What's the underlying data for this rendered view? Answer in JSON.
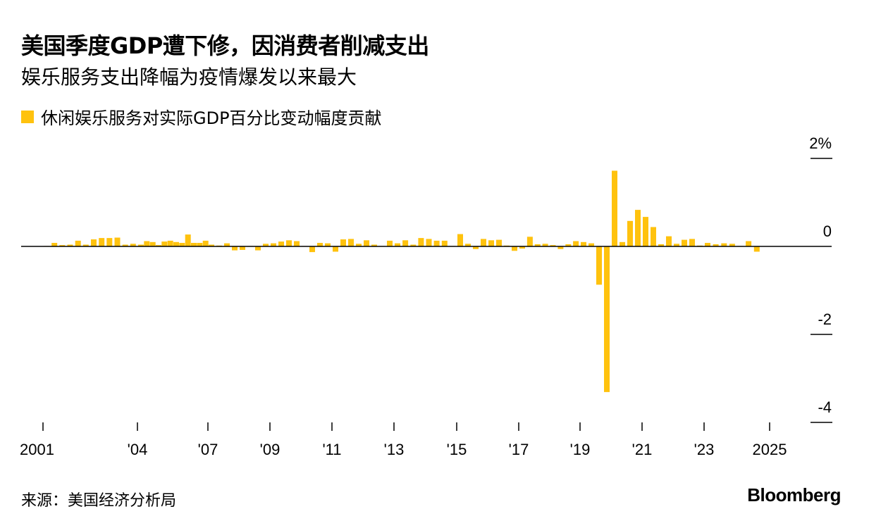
{
  "title": "美国季度GDP遭下修，因消费者削减支出",
  "subtitle": "娱乐服务支出降幅为疫情爆发以来最大",
  "legend": {
    "label": "休闲娱乐服务对实际GDP百分比变动幅度贡献",
    "color": "#FFC20E"
  },
  "source": "来源：美国经济分析局",
  "brand": "Bloomberg",
  "colors": {
    "bar": "#FFC20E",
    "axis": "#000000"
  },
  "chart_data": {
    "type": "bar",
    "title": "美国季度GDP遭下修，因消费者削减支出",
    "subtitle": "娱乐服务支出降幅为疫情爆发以来最大",
    "series": [
      {
        "name": "休闲娱乐服务对实际GDP百分比变动幅度贡献"
      }
    ],
    "ylim": [
      -4,
      2
    ],
    "y_ticks": [
      {
        "value": 2,
        "label": "2%"
      },
      {
        "value": 0,
        "label": "0"
      },
      {
        "value": -2,
        "label": "-2"
      },
      {
        "value": -4,
        "label": "-4"
      }
    ],
    "x_ticks": [
      {
        "year": 2001,
        "label": "2001"
      },
      {
        "year": 2004,
        "label": "'04"
      },
      {
        "year": 2007,
        "label": "'07"
      },
      {
        "year": 2009,
        "label": "'09"
      },
      {
        "year": 2011,
        "label": "'11"
      },
      {
        "year": 2013,
        "label": "'13"
      },
      {
        "year": 2015,
        "label": "'15"
      },
      {
        "year": 2017,
        "label": "'17"
      },
      {
        "year": 2019,
        "label": "'19"
      },
      {
        "year": 2021,
        "label": "'21"
      },
      {
        "year": 2023,
        "label": "'23"
      },
      {
        "year": 2025,
        "label": "2025"
      }
    ],
    "x_start": "2001 Q1",
    "x_end": "2025 Q1",
    "values": [
      0.01,
      0.08,
      0.03,
      0.04,
      0.13,
      0.04,
      0.16,
      0.19,
      0.19,
      0.2,
      0.04,
      0.06,
      0.04,
      0.12,
      0.1,
      0.03,
      0.11,
      0.13,
      0.1,
      0.08,
      0.27,
      0.08,
      0.08,
      0.13,
      0.04,
      0.02,
      0.07,
      -0.09,
      -0.08,
      0.01,
      -0.09,
      0.06,
      0.07,
      0.11,
      0.14,
      0.12,
      0.01,
      -0.13,
      0.08,
      0.07,
      -0.12,
      0.16,
      0.17,
      0.06,
      0.14,
      0.04,
      0.01,
      0.13,
      0.07,
      0.14,
      0.04,
      0.19,
      0.17,
      0.13,
      0.13,
      0.01,
      0.28,
      0.06,
      -0.06,
      0.17,
      0.14,
      0.15,
      0.02,
      -0.1,
      -0.05,
      0.22,
      0.05,
      0.06,
      0.03,
      -0.06,
      0.05,
      0.12,
      0.1,
      0.07,
      -0.87,
      -3.31,
      1.72,
      0.1,
      0.58,
      0.83,
      0.67,
      0.44,
      0.05,
      0.23,
      0.06,
      0.15,
      0.17,
      0.02,
      0.08,
      0.05,
      0.07,
      0.06,
      0.01,
      0.12,
      -0.12
    ]
  }
}
